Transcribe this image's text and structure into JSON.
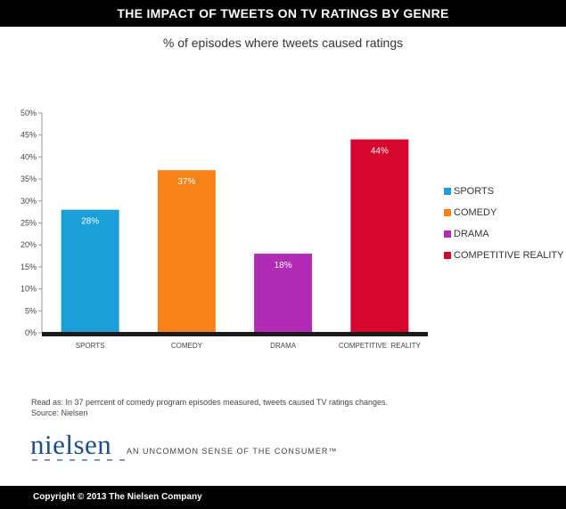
{
  "header": {
    "title": "THE IMPACT OF TWEETS ON TV RATINGS BY GENRE"
  },
  "chart_data": {
    "type": "bar",
    "title": "THE IMPACT OF TWEETS ON TV RATINGS BY GENRE",
    "subtitle": "% of episodes where tweets caused ratings",
    "categories": [
      "SPORTS",
      "COMEDY",
      "DRAMA",
      "COMPETITIVE  REALITY"
    ],
    "values": [
      28,
      37,
      18,
      44
    ],
    "data_labels": [
      "28%",
      "37%",
      "18%",
      "44%"
    ],
    "colors": [
      "#1b9fd9",
      "#f78318",
      "#b32ab5",
      "#d7062f"
    ],
    "ylim": [
      0,
      50
    ],
    "yticks": [
      0,
      5,
      10,
      15,
      20,
      25,
      30,
      35,
      40,
      45,
      50
    ],
    "ytick_labels": [
      "0%",
      "5%",
      "10%",
      "15%",
      "20%",
      "25%",
      "30%",
      "35%",
      "40%",
      "45%",
      "50%"
    ],
    "xlabel": "",
    "ylabel": "",
    "grid": false,
    "legend_position": "right",
    "legend": [
      "SPORTS",
      "COMEDY",
      "DRAMA",
      "COMPETITIVE REALITY"
    ]
  },
  "notes": {
    "read_as": "Read as: In 37 perrcent of comedy program episodes measured, tweets caused TV ratings changes.",
    "source": "Source: Nielsen"
  },
  "branding": {
    "logo": "nielsen",
    "tagline": "AN UNCOMMON SENSE OF THE CONSUMER™"
  },
  "footer": {
    "copyright": "Copyright © 2013 The Nielsen Company"
  }
}
